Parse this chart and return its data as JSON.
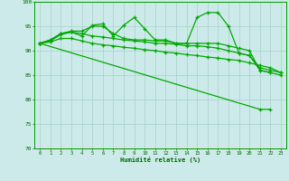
{
  "x": [
    0,
    1,
    2,
    3,
    4,
    5,
    6,
    7,
    8,
    9,
    10,
    11,
    12,
    13,
    14,
    15,
    16,
    17,
    18,
    19,
    20,
    21,
    22,
    23
  ],
  "line1": [
    91.5,
    92.2,
    93.5,
    93.8,
    93.0,
    95.2,
    95.5,
    93.0,
    95.2,
    96.8,
    94.5,
    92.2,
    92.2,
    91.5,
    91.5,
    96.8,
    97.8,
    97.8,
    95.0,
    89.5,
    89.0,
    86.0,
    85.5,
    null
  ],
  "line2": [
    91.5,
    92.2,
    93.5,
    94.0,
    94.0,
    95.0,
    95.0,
    93.5,
    92.5,
    92.2,
    92.2,
    92.0,
    92.0,
    91.5,
    91.5,
    91.5,
    91.5,
    91.5,
    91.0,
    90.5,
    90.0,
    86.0,
    85.5,
    85.0
  ],
  "line3": [
    91.5,
    92.0,
    93.3,
    93.8,
    93.5,
    93.0,
    92.8,
    92.5,
    92.2,
    92.0,
    91.8,
    91.5,
    91.5,
    91.3,
    91.0,
    91.0,
    90.8,
    90.5,
    90.0,
    89.5,
    89.0,
    86.5,
    86.0,
    85.5
  ],
  "line4_x": [
    0,
    21,
    22
  ],
  "line4_y": [
    91.5,
    78.0,
    78.0
  ],
  "line5": [
    91.5,
    91.8,
    92.5,
    92.5,
    92.0,
    91.5,
    91.2,
    91.0,
    90.7,
    90.5,
    90.2,
    90.0,
    89.7,
    89.5,
    89.2,
    89.0,
    88.7,
    88.5,
    88.2,
    88.0,
    87.5,
    87.0,
    86.5,
    85.5
  ],
  "background_color": "#cdeaea",
  "grid_color": "#a8d0cc",
  "line_color": "#00aa00",
  "xlabel": "Humidité relative (%)",
  "ylim": [
    70,
    100
  ],
  "xlim": [
    -0.5,
    23.5
  ],
  "yticks": [
    70,
    75,
    80,
    85,
    90,
    95,
    100
  ],
  "xticks": [
    0,
    1,
    2,
    3,
    4,
    5,
    6,
    7,
    8,
    9,
    10,
    11,
    12,
    13,
    14,
    15,
    16,
    17,
    18,
    19,
    20,
    21,
    22,
    23
  ]
}
